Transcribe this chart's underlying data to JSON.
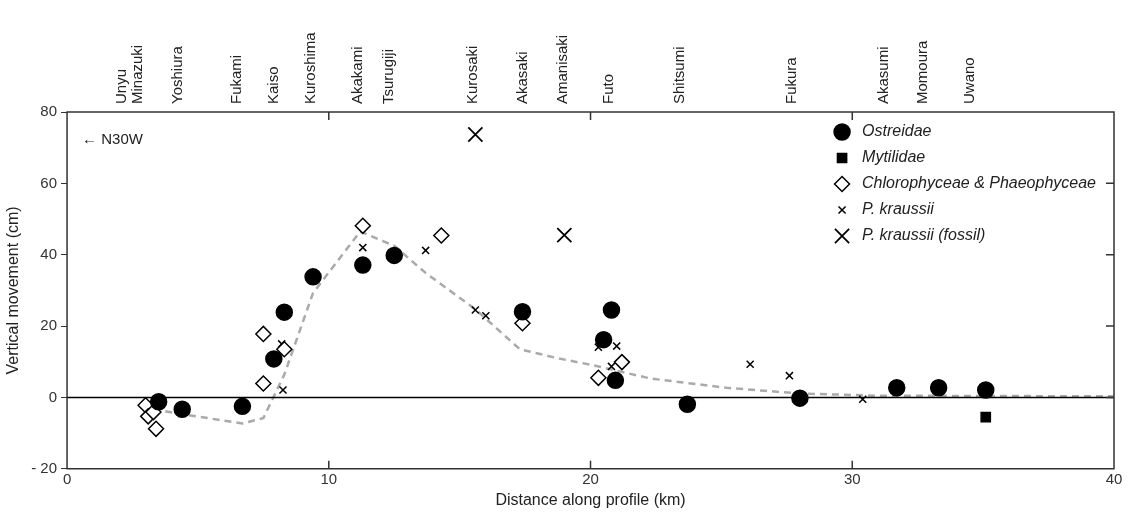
{
  "chart_data": {
    "type": "scatter",
    "xlabel": "Distance along profile (km)",
    "ylabel": "Vertical movement (cm)",
    "xlim": [
      0,
      40
    ],
    "xticks": [
      0,
      10,
      20,
      30,
      40
    ],
    "ylim": [
      -20,
      80
    ],
    "yticks": [
      {
        "value": -20,
        "label": "- 20"
      },
      0,
      20,
      40,
      60,
      80
    ],
    "grid": false,
    "legend": "top right",
    "annotations": [
      "← N30W",
      "Unyu",
      "Minazuki",
      "Yoshiura",
      "Fukami",
      "Kaiso",
      "Kuroshima",
      "Akakami",
      "Tsurugiji",
      "Kurosaki",
      "Akasaki",
      "Amanisaki",
      "Futo",
      "Shitsumi",
      "Fukura",
      "Akasumi",
      "Momoura",
      "Uwano"
    ],
    "ref_lines": [
      {
        "axis": "y",
        "value": 0,
        "color": "#000000",
        "line_style": "solid"
      }
    ],
    "series": [
      {
        "type": "line",
        "color": "#aaaaaa",
        "line_style": "dashed",
        "marker": "none",
        "x": [
          3.3,
          4.5,
          6.7,
          7.5,
          8.3,
          9.4,
          11.2,
          12.5,
          13.7,
          15.6,
          17.3,
          18.8,
          20.05,
          22.3,
          25.2,
          28.0,
          30.9,
          40
        ],
        "values": [
          -3.3,
          -4.8,
          -7.3,
          -5.8,
          6.4,
          29.3,
          46.5,
          42.5,
          34.9,
          24.7,
          13.5,
          10.9,
          9.1,
          5.3,
          2.7,
          1.1,
          0.5,
          0.3
        ]
      },
      {
        "name": "Ostreidae",
        "type": "scatter",
        "marker": "circle",
        "color": "#000000",
        "x": [
          3.5,
          4.4,
          6.7,
          7.9,
          8.3,
          9.4,
          11.3,
          12.5,
          17.4,
          20.8,
          20.5,
          20.95,
          23.7,
          28.0,
          31.7,
          33.3,
          35.1
        ],
        "values": [
          -1.2,
          -3.3,
          -2.5,
          10.8,
          23.9,
          33.8,
          37.1,
          39.8,
          24.0,
          24.5,
          16.2,
          4.8,
          -1.9,
          -0.2,
          2.7,
          2.7,
          2.1
        ]
      },
      {
        "name": "Mytilidae",
        "type": "scatter",
        "marker": "square",
        "color": "#000000",
        "x": [
          35.1
        ],
        "values": [
          -5.5
        ]
      },
      {
        "name": "Chlorophyceae & Phaeophyceae",
        "type": "scatter",
        "marker": "diamond",
        "color": "#000000",
        "x": [
          3.0,
          3.1,
          3.3,
          3.4,
          7.5,
          7.5,
          8.3,
          11.3,
          14.3,
          17.4,
          20.3,
          21.2
        ],
        "values": [
          -2.2,
          -5.3,
          -4.1,
          -8.8,
          17.8,
          3.9,
          13.5,
          48.1,
          45.4,
          20.8,
          5.5,
          9.9
        ]
      },
      {
        "name": "P. kraussii",
        "type": "scatter",
        "marker": "cross",
        "color": "#000000",
        "x": [
          8.2,
          8.25,
          11.3,
          13.7,
          15.6,
          16.0,
          20.3,
          21.0,
          20.8,
          26.1,
          27.6,
          30.4
        ],
        "values": [
          15.0,
          2.1,
          42.0,
          41.2,
          24.5,
          22.9,
          14.1,
          14.4,
          8.7,
          9.3,
          6.1,
          -0.5
        ]
      },
      {
        "name": "P. kraussii (fossil)",
        "type": "scatter",
        "marker": "cross",
        "color": "#000000",
        "x": [
          15.6,
          19.0
        ],
        "values": [
          73.7,
          45.5
        ]
      }
    ]
  }
}
